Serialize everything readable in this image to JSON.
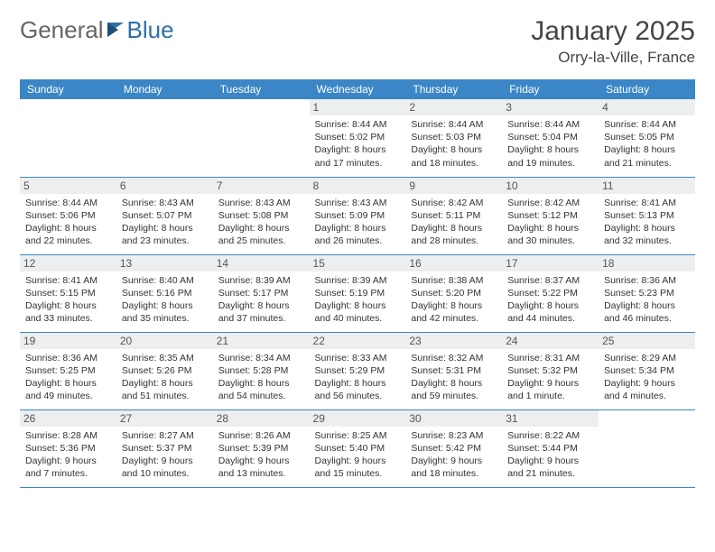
{
  "brand": {
    "part1": "General",
    "part2": "Blue"
  },
  "title": "January 2025",
  "location": "Orry-la-Ville, France",
  "colors": {
    "header_bg": "#3b86c6",
    "header_text": "#ffffff",
    "daynum_bg": "#eceef0",
    "border": "#3b86c6",
    "brand_gray": "#666666",
    "brand_blue": "#2f6fa8"
  },
  "weekdays": [
    "Sunday",
    "Monday",
    "Tuesday",
    "Wednesday",
    "Thursday",
    "Friday",
    "Saturday"
  ],
  "weeks": [
    [
      {
        "empty": true
      },
      {
        "empty": true
      },
      {
        "empty": true
      },
      {
        "n": "1",
        "sr": "Sunrise: 8:44 AM",
        "ss": "Sunset: 5:02 PM",
        "dl": "Daylight: 8 hours and 17 minutes."
      },
      {
        "n": "2",
        "sr": "Sunrise: 8:44 AM",
        "ss": "Sunset: 5:03 PM",
        "dl": "Daylight: 8 hours and 18 minutes."
      },
      {
        "n": "3",
        "sr": "Sunrise: 8:44 AM",
        "ss": "Sunset: 5:04 PM",
        "dl": "Daylight: 8 hours and 19 minutes."
      },
      {
        "n": "4",
        "sr": "Sunrise: 8:44 AM",
        "ss": "Sunset: 5:05 PM",
        "dl": "Daylight: 8 hours and 21 minutes."
      }
    ],
    [
      {
        "n": "5",
        "sr": "Sunrise: 8:44 AM",
        "ss": "Sunset: 5:06 PM",
        "dl": "Daylight: 8 hours and 22 minutes."
      },
      {
        "n": "6",
        "sr": "Sunrise: 8:43 AM",
        "ss": "Sunset: 5:07 PM",
        "dl": "Daylight: 8 hours and 23 minutes."
      },
      {
        "n": "7",
        "sr": "Sunrise: 8:43 AM",
        "ss": "Sunset: 5:08 PM",
        "dl": "Daylight: 8 hours and 25 minutes."
      },
      {
        "n": "8",
        "sr": "Sunrise: 8:43 AM",
        "ss": "Sunset: 5:09 PM",
        "dl": "Daylight: 8 hours and 26 minutes."
      },
      {
        "n": "9",
        "sr": "Sunrise: 8:42 AM",
        "ss": "Sunset: 5:11 PM",
        "dl": "Daylight: 8 hours and 28 minutes."
      },
      {
        "n": "10",
        "sr": "Sunrise: 8:42 AM",
        "ss": "Sunset: 5:12 PM",
        "dl": "Daylight: 8 hours and 30 minutes."
      },
      {
        "n": "11",
        "sr": "Sunrise: 8:41 AM",
        "ss": "Sunset: 5:13 PM",
        "dl": "Daylight: 8 hours and 32 minutes."
      }
    ],
    [
      {
        "n": "12",
        "sr": "Sunrise: 8:41 AM",
        "ss": "Sunset: 5:15 PM",
        "dl": "Daylight: 8 hours and 33 minutes."
      },
      {
        "n": "13",
        "sr": "Sunrise: 8:40 AM",
        "ss": "Sunset: 5:16 PM",
        "dl": "Daylight: 8 hours and 35 minutes."
      },
      {
        "n": "14",
        "sr": "Sunrise: 8:39 AM",
        "ss": "Sunset: 5:17 PM",
        "dl": "Daylight: 8 hours and 37 minutes."
      },
      {
        "n": "15",
        "sr": "Sunrise: 8:39 AM",
        "ss": "Sunset: 5:19 PM",
        "dl": "Daylight: 8 hours and 40 minutes."
      },
      {
        "n": "16",
        "sr": "Sunrise: 8:38 AM",
        "ss": "Sunset: 5:20 PM",
        "dl": "Daylight: 8 hours and 42 minutes."
      },
      {
        "n": "17",
        "sr": "Sunrise: 8:37 AM",
        "ss": "Sunset: 5:22 PM",
        "dl": "Daylight: 8 hours and 44 minutes."
      },
      {
        "n": "18",
        "sr": "Sunrise: 8:36 AM",
        "ss": "Sunset: 5:23 PM",
        "dl": "Daylight: 8 hours and 46 minutes."
      }
    ],
    [
      {
        "n": "19",
        "sr": "Sunrise: 8:36 AM",
        "ss": "Sunset: 5:25 PM",
        "dl": "Daylight: 8 hours and 49 minutes."
      },
      {
        "n": "20",
        "sr": "Sunrise: 8:35 AM",
        "ss": "Sunset: 5:26 PM",
        "dl": "Daylight: 8 hours and 51 minutes."
      },
      {
        "n": "21",
        "sr": "Sunrise: 8:34 AM",
        "ss": "Sunset: 5:28 PM",
        "dl": "Daylight: 8 hours and 54 minutes."
      },
      {
        "n": "22",
        "sr": "Sunrise: 8:33 AM",
        "ss": "Sunset: 5:29 PM",
        "dl": "Daylight: 8 hours and 56 minutes."
      },
      {
        "n": "23",
        "sr": "Sunrise: 8:32 AM",
        "ss": "Sunset: 5:31 PM",
        "dl": "Daylight: 8 hours and 59 minutes."
      },
      {
        "n": "24",
        "sr": "Sunrise: 8:31 AM",
        "ss": "Sunset: 5:32 PM",
        "dl": "Daylight: 9 hours and 1 minute."
      },
      {
        "n": "25",
        "sr": "Sunrise: 8:29 AM",
        "ss": "Sunset: 5:34 PM",
        "dl": "Daylight: 9 hours and 4 minutes."
      }
    ],
    [
      {
        "n": "26",
        "sr": "Sunrise: 8:28 AM",
        "ss": "Sunset: 5:36 PM",
        "dl": "Daylight: 9 hours and 7 minutes."
      },
      {
        "n": "27",
        "sr": "Sunrise: 8:27 AM",
        "ss": "Sunset: 5:37 PM",
        "dl": "Daylight: 9 hours and 10 minutes."
      },
      {
        "n": "28",
        "sr": "Sunrise: 8:26 AM",
        "ss": "Sunset: 5:39 PM",
        "dl": "Daylight: 9 hours and 13 minutes."
      },
      {
        "n": "29",
        "sr": "Sunrise: 8:25 AM",
        "ss": "Sunset: 5:40 PM",
        "dl": "Daylight: 9 hours and 15 minutes."
      },
      {
        "n": "30",
        "sr": "Sunrise: 8:23 AM",
        "ss": "Sunset: 5:42 PM",
        "dl": "Daylight: 9 hours and 18 minutes."
      },
      {
        "n": "31",
        "sr": "Sunrise: 8:22 AM",
        "ss": "Sunset: 5:44 PM",
        "dl": "Daylight: 9 hours and 21 minutes."
      },
      {
        "empty": true
      }
    ]
  ]
}
